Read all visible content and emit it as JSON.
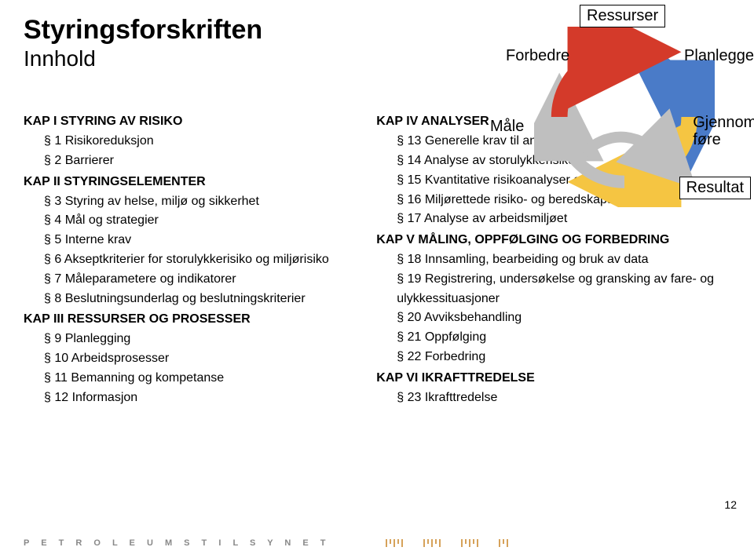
{
  "title": "Styringsforskriften",
  "subtitle": "Innhold",
  "page_number": "12",
  "brand_text": "P E T R O L E U M S T I L S Y N E T",
  "cycle": {
    "labels": {
      "top": "Ressurser",
      "left": "Forbedre",
      "right": "Planlegge",
      "left_lower": "Måle",
      "right_lower": "Gjennom-\nføre",
      "bottom": "Resultat"
    },
    "arrow_colors": {
      "blue": "#4a7bc8",
      "yellow": "#f5c542",
      "red": "#d43a2a",
      "grey": "#bfbfbf"
    }
  },
  "left_col": [
    {
      "t": "kap",
      "text": "KAP I STYRING AV RISIKO"
    },
    {
      "t": "item",
      "text": "§ 1 Risikoreduksjon"
    },
    {
      "t": "item",
      "text": "§ 2 Barrierer"
    },
    {
      "t": "kap",
      "text": "KAP II STYRINGSELEMENTER"
    },
    {
      "t": "item",
      "text": "§ 3 Styring av helse, miljø og sikkerhet"
    },
    {
      "t": "item",
      "text": "§ 4 Mål og strategier"
    },
    {
      "t": "item",
      "text": "§ 5 Interne krav"
    },
    {
      "t": "item",
      "text": "§ 6 Akseptkriterier for storulykkerisiko og miljørisiko"
    },
    {
      "t": "item",
      "text": "§ 7 Måleparametere og indikatorer"
    },
    {
      "t": "item",
      "text": "§ 8 Beslutningsunderlag og beslutningskriterier"
    },
    {
      "t": "kap",
      "text": "KAP III RESSURSER OG PROSESSER"
    },
    {
      "t": "item",
      "text": "§ 9 Planlegging"
    },
    {
      "t": "item",
      "text": "§ 10 Arbeidsprosesser"
    },
    {
      "t": "item",
      "text": "§ 11 Bemanning og kompetanse"
    },
    {
      "t": "item",
      "text": "§ 12 Informasjon"
    }
  ],
  "right_col": [
    {
      "t": "kap",
      "text": "KAP IV ANALYSER"
    },
    {
      "t": "item",
      "text": "§ 13 Generelle krav til analyser"
    },
    {
      "t": "item",
      "text": "§ 14 Analyse av storulykkerisiko"
    },
    {
      "t": "item",
      "text": "§ 15 Kvantitative risikoanalyser og beredskapsanalyser"
    },
    {
      "t": "item",
      "text": "§ 16 Miljørettede risiko- og beredskapsanalyser"
    },
    {
      "t": "item",
      "text": "§ 17 Analyse av arbeidsmiljøet"
    },
    {
      "t": "kap",
      "text": "KAP V MÅLING, OPPFØLGING OG FORBEDRING"
    },
    {
      "t": "item",
      "text": "§ 18 Innsamling, bearbeiding og bruk av data"
    },
    {
      "t": "item",
      "text": "§ 19 Registrering, undersøkelse og gransking av fare- og ulykkessituasjoner"
    },
    {
      "t": "item",
      "text": "§ 20 Avviksbehandling"
    },
    {
      "t": "item",
      "text": "§ 21 Oppfølging"
    },
    {
      "t": "item",
      "text": "§ 22 Forbedring"
    },
    {
      "t": "kap",
      "text": "KAP VI IKRAFTTREDELSE"
    },
    {
      "t": "item",
      "text": "§ 23 Ikrafttredelse"
    }
  ]
}
